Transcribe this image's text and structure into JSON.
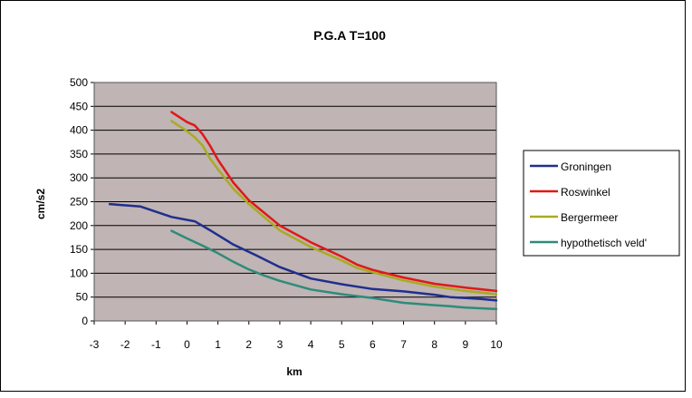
{
  "chart_data": {
    "type": "line",
    "title": "P.G.A T=100",
    "xlabel": "km",
    "ylabel": "cm/s2",
    "xlim": [
      -3,
      10
    ],
    "ylim": [
      0,
      500
    ],
    "xticks": [
      -3,
      -2,
      -1,
      0,
      1,
      2,
      3,
      4,
      5,
      6,
      7,
      8,
      9,
      10
    ],
    "yticks": [
      0,
      50,
      100,
      150,
      200,
      250,
      300,
      350,
      400,
      450,
      500
    ],
    "grid": true,
    "plot_background": "#c0b4b4",
    "legend_position": "right",
    "series": [
      {
        "name": "Groningen",
        "color": "#1f2f8f",
        "x": [
          -2.5,
          -1.5,
          -0.5,
          0.25,
          0.75,
          1.5,
          2.25,
          3,
          4,
          5,
          6,
          7,
          8,
          8.5,
          9.5,
          10
        ],
        "y": [
          245,
          240,
          218,
          209,
          190,
          160,
          137,
          113,
          89,
          77,
          67,
          62,
          55,
          50,
          46,
          43
        ]
      },
      {
        "name": "Roswinkel",
        "color": "#e01818",
        "x": [
          -0.5,
          0,
          0.25,
          0.5,
          0.75,
          1,
          1.5,
          2,
          3,
          4,
          5,
          5.5,
          6,
          7,
          8,
          9,
          10
        ],
        "y": [
          438,
          417,
          410,
          392,
          367,
          338,
          290,
          253,
          200,
          165,
          135,
          118,
          107,
          91,
          78,
          70,
          63
        ]
      },
      {
        "name": "Bergermeer",
        "color": "#aaaa22",
        "x": [
          -0.5,
          0,
          0.25,
          0.5,
          0.75,
          1,
          1.5,
          2,
          3,
          4,
          5,
          5.5,
          6,
          7,
          8,
          9,
          10
        ],
        "y": [
          419,
          398,
          385,
          368,
          340,
          318,
          277,
          245,
          190,
          155,
          127,
          111,
          102,
          85,
          72,
          63,
          56
        ]
      },
      {
        "name": "hypothetisch veld'",
        "color": "#2e8b7a",
        "x": [
          -0.5,
          0,
          0.5,
          1,
          1.5,
          2,
          2.5,
          3,
          4,
          5,
          6,
          7,
          8,
          8.5,
          9,
          10
        ],
        "y": [
          189,
          173,
          158,
          142,
          124,
          108,
          95,
          84,
          66,
          56,
          48,
          38,
          33,
          31,
          28,
          25
        ]
      }
    ]
  }
}
